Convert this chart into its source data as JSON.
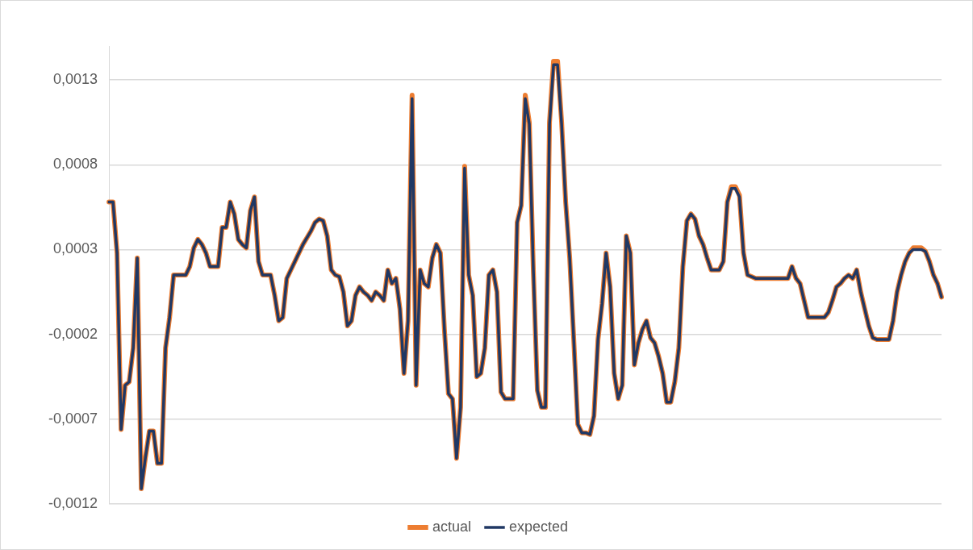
{
  "chart_data": {
    "type": "line",
    "categories": [
      null,
      null,
      null,
      null,
      null,
      null,
      null,
      null,
      null,
      null,
      null,
      null,
      null,
      null,
      null,
      null,
      null,
      null,
      null,
      null,
      null,
      null,
      null,
      null,
      null,
      null,
      null,
      null,
      null,
      null,
      null,
      null,
      null,
      null,
      null,
      null,
      null,
      null,
      null,
      null,
      null,
      null,
      null,
      null,
      null,
      null,
      null,
      null,
      null,
      null,
      null,
      null,
      null,
      null,
      null,
      null,
      null,
      null,
      null,
      null,
      null,
      null,
      null,
      null,
      null,
      null,
      null,
      null,
      null,
      null,
      null,
      null,
      null,
      null,
      null,
      null,
      null,
      null,
      null,
      null,
      null,
      null,
      null,
      null,
      null,
      null,
      null,
      null,
      null,
      null,
      null,
      null,
      null,
      null,
      null,
      null,
      null,
      null,
      null,
      null,
      null,
      null,
      null,
      null,
      null,
      null,
      null,
      null,
      null,
      null,
      null,
      null,
      null,
      null,
      null,
      null,
      null,
      null,
      null,
      null,
      null,
      null,
      null,
      null,
      null,
      null,
      null,
      null,
      null,
      null,
      null,
      null,
      null,
      null,
      null,
      null,
      null,
      null,
      null,
      null,
      null,
      null,
      null,
      null,
      null,
      null,
      null,
      null,
      null,
      null,
      null,
      null,
      null,
      null,
      null,
      null,
      null,
      null,
      null,
      null,
      null,
      null,
      null,
      null,
      null,
      null,
      null,
      null,
      null,
      null,
      null,
      null,
      null,
      null,
      null,
      null,
      null,
      null,
      null,
      null,
      null,
      null,
      null,
      null,
      null,
      null,
      null,
      null,
      null,
      null,
      null,
      null,
      null,
      null,
      null,
      null,
      null,
      null,
      null,
      null,
      null,
      null,
      null,
      null,
      null,
      null,
      null
    ],
    "series": [
      {
        "name": "actual",
        "color": "#ed7d31",
        "values": [
          0.00058,
          0.00058,
          0.00028,
          -0.00076,
          -0.0005,
          -0.00048,
          -0.00028,
          0.00025,
          -0.00111,
          -0.00093,
          -0.00077,
          -0.00077,
          -0.00096,
          -0.00096,
          -0.00028,
          -0.0001,
          0.00015,
          0.00015,
          0.00015,
          0.00015,
          0.0002,
          0.00031,
          0.00036,
          0.00033,
          0.00028,
          0.0002,
          0.0002,
          0.0002,
          0.00043,
          0.00043,
          0.00058,
          0.00051,
          0.00036,
          0.00033,
          0.00031,
          0.00053,
          0.00061,
          0.00023,
          0.00015,
          0.00015,
          0.00015,
          3e-05,
          -0.00012,
          -0.0001,
          0.00013,
          0.00018,
          0.00023,
          0.00028,
          0.00033,
          0.00037,
          0.00041,
          0.00046,
          0.00048,
          0.00047,
          0.00038,
          0.00018,
          0.00015,
          0.00014,
          5e-05,
          -0.00015,
          -0.00012,
          3e-05,
          8e-05,
          5e-05,
          3e-05,
          0,
          5e-05,
          3e-05,
          0,
          0.00018,
          0.0001,
          0.00013,
          -5e-05,
          -0.00043,
          -0.00012,
          0.00121,
          -0.0005,
          0.00018,
          0.0001,
          8e-05,
          0.00025,
          0.00033,
          0.00028,
          -0.00017,
          -0.00055,
          -0.00058,
          -0.00093,
          -0.00063,
          0.00079,
          0.00015,
          3e-05,
          -0.00045,
          -0.00043,
          -0.00028,
          0.00015,
          0.00018,
          5e-05,
          -0.00054,
          -0.00058,
          -0.00058,
          -0.00058,
          0.00046,
          0.00056,
          0.00121,
          0.00105,
          0.00018,
          -0.00053,
          -0.00063,
          -0.00063,
          0.00105,
          0.00141,
          0.00141,
          0.00105,
          0.00058,
          0.00025,
          -0.00023,
          -0.00073,
          -0.00078,
          -0.00078,
          -0.00079,
          -0.00068,
          -0.00023,
          -2e-05,
          0.00028,
          8e-05,
          -0.00043,
          -0.00058,
          -0.0005,
          0.00038,
          0.00028,
          -0.00038,
          -0.00025,
          -0.00017,
          -0.00012,
          -0.00022,
          -0.00025,
          -0.00033,
          -0.00043,
          -0.0006,
          -0.0006,
          -0.00048,
          -0.00028,
          0.0002,
          0.00047,
          0.00051,
          0.00048,
          0.00038,
          0.00033,
          0.00025,
          0.00018,
          0.00018,
          0.00018,
          0.00023,
          0.00058,
          0.00067,
          0.00067,
          0.00062,
          0.00028,
          0.00015,
          0.00014,
          0.00013,
          0.00013,
          0.00013,
          0.00013,
          0.00013,
          0.00013,
          0.00013,
          0.00013,
          0.00013,
          0.0002,
          0.00013,
          0.0001,
          0,
          -0.0001,
          -0.0001,
          -0.0001,
          -0.0001,
          -0.0001,
          -7e-05,
          0,
          8e-05,
          0.0001,
          0.00013,
          0.00015,
          0.00013,
          0.00018,
          5e-05,
          -5e-05,
          -0.00015,
          -0.00022,
          -0.00023,
          -0.00023,
          -0.00023,
          -0.00023,
          -0.00012,
          5e-05,
          0.00015,
          0.00023,
          0.00028,
          0.00031,
          0.00031,
          0.00031,
          0.00029,
          0.00023,
          0.00015,
          0.0001,
          2e-05
        ]
      },
      {
        "name": "expected",
        "color": "#203864",
        "values": [
          0.00058,
          0.00058,
          0.00028,
          -0.00076,
          -0.0005,
          -0.00048,
          -0.00028,
          0.00025,
          -0.00111,
          -0.00093,
          -0.00077,
          -0.00077,
          -0.00096,
          -0.00096,
          -0.00028,
          -0.0001,
          0.00015,
          0.00015,
          0.00015,
          0.00015,
          0.0002,
          0.00031,
          0.00036,
          0.00033,
          0.00028,
          0.0002,
          0.0002,
          0.0002,
          0.00043,
          0.00043,
          0.00058,
          0.00051,
          0.00036,
          0.00033,
          0.00031,
          0.00053,
          0.00061,
          0.00023,
          0.00015,
          0.00015,
          0.00015,
          3e-05,
          -0.00012,
          -0.0001,
          0.00013,
          0.00018,
          0.00023,
          0.00028,
          0.00033,
          0.00037,
          0.00041,
          0.00046,
          0.00048,
          0.00047,
          0.00038,
          0.00018,
          0.00015,
          0.00014,
          5e-05,
          -0.00015,
          -0.00012,
          3e-05,
          8e-05,
          5e-05,
          3e-05,
          0,
          5e-05,
          3e-05,
          0,
          0.00018,
          0.0001,
          0.00013,
          -5e-05,
          -0.00043,
          -0.00012,
          0.00119,
          -0.0005,
          0.00018,
          0.0001,
          8e-05,
          0.00025,
          0.00033,
          0.00028,
          -0.00017,
          -0.00055,
          -0.00058,
          -0.00093,
          -0.00063,
          0.00078,
          0.00015,
          3e-05,
          -0.00045,
          -0.00043,
          -0.00028,
          0.00015,
          0.00018,
          5e-05,
          -0.00054,
          -0.00058,
          -0.00058,
          -0.00058,
          0.00046,
          0.00056,
          0.00119,
          0.00104,
          0.00018,
          -0.00053,
          -0.00063,
          -0.00063,
          0.00104,
          0.00139,
          0.00139,
          0.00104,
          0.00058,
          0.00025,
          -0.00023,
          -0.00073,
          -0.00078,
          -0.00078,
          -0.00079,
          -0.00068,
          -0.00023,
          -2e-05,
          0.00028,
          8e-05,
          -0.00043,
          -0.00058,
          -0.0005,
          0.00038,
          0.00028,
          -0.00038,
          -0.00025,
          -0.00017,
          -0.00012,
          -0.00022,
          -0.00025,
          -0.00033,
          -0.00043,
          -0.0006,
          -0.0006,
          -0.00048,
          -0.00028,
          0.0002,
          0.00047,
          0.00051,
          0.00048,
          0.00038,
          0.00033,
          0.00025,
          0.00018,
          0.00018,
          0.00018,
          0.00023,
          0.00058,
          0.00066,
          0.00066,
          0.00061,
          0.00028,
          0.00015,
          0.00014,
          0.00013,
          0.00013,
          0.00013,
          0.00013,
          0.00013,
          0.00013,
          0.00013,
          0.00013,
          0.00013,
          0.0002,
          0.00013,
          0.0001,
          0,
          -0.0001,
          -0.0001,
          -0.0001,
          -0.0001,
          -0.0001,
          -7e-05,
          0,
          8e-05,
          0.0001,
          0.00013,
          0.00015,
          0.00013,
          0.00018,
          5e-05,
          -5e-05,
          -0.00015,
          -0.00022,
          -0.00023,
          -0.00023,
          -0.00023,
          -0.00023,
          -0.00012,
          5e-05,
          0.00015,
          0.00023,
          0.00028,
          0.0003,
          0.0003,
          0.0003,
          0.00029,
          0.00023,
          0.00015,
          0.0001,
          2e-05
        ]
      }
    ],
    "ylim": [
      -0.0012,
      0.0015
    ],
    "yticks": [
      {
        "value": -0.0012,
        "label": "-0,0012"
      },
      {
        "value": -0.0007,
        "label": "-0,0007"
      },
      {
        "value": -0.0002,
        "label": "-0,0002"
      },
      {
        "value": 0.0003,
        "label": "0,0003"
      },
      {
        "value": 0.0008,
        "label": "0,0008"
      },
      {
        "value": 0.0013,
        "label": "0,0013"
      }
    ],
    "grid": "y",
    "legend": "bottom",
    "tick_labels": "y",
    "marker": "none",
    "line_style": "solid"
  }
}
